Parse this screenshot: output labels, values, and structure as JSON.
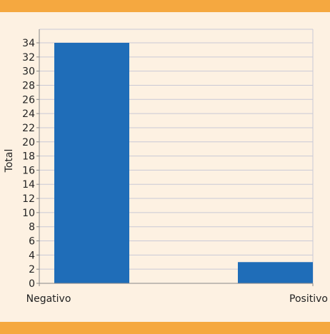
{
  "chart_data": {
    "type": "bar",
    "categories": [
      "Negativo",
      "Positivo"
    ],
    "values": [
      34,
      3
    ],
    "title": "",
    "xlabel": "",
    "ylabel": "Total",
    "ylim": [
      0,
      34
    ],
    "yticks": [
      0,
      2,
      4,
      6,
      8,
      10,
      12,
      14,
      16,
      18,
      20,
      22,
      24,
      26,
      28,
      30,
      32,
      34
    ],
    "grid": true,
    "legend": "none"
  },
  "colors": {
    "bar": "#1f6db8",
    "band": "#f5a840",
    "background": "#fdf1e2",
    "plot_background": "#fdf1e2",
    "grid": "#c9c9d6",
    "axis": "#888888"
  }
}
